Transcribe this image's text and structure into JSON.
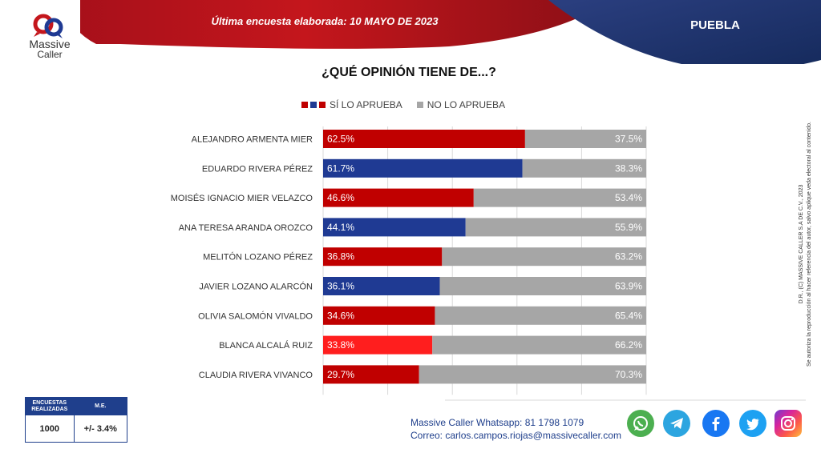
{
  "header": {
    "brand_name": "Massive",
    "brand_sub": "Caller",
    "survey_date": "Última encuesta elaborada: 10  MAYO  DE 2023",
    "region": "PUEBLA"
  },
  "chart_data": {
    "type": "bar",
    "title": "¿QUÉ OPINIÓN TIENE DE...?",
    "legend": [
      "SÍ LO APRUEBA",
      "NO LO APRUEBA"
    ],
    "categories": [
      "ALEJANDRO ARMENTA MIER",
      "EDUARDO RIVERA PÉREZ",
      "MOISÉS IGNACIO MIER VELAZCO",
      "ANA TERESA ARANDA OROZCO",
      "MELITÓN LOZANO PÉREZ",
      "JAVIER LOZANO ALARCÓN",
      "OLIVIA SALOMÓN VIVALDO",
      "BLANCA ALCALÁ RUIZ",
      "CLAUDIA RIVERA VIVANCO"
    ],
    "series": [
      {
        "name": "SÍ LO APRUEBA",
        "values": [
          62.5,
          61.7,
          46.6,
          44.1,
          36.8,
          36.1,
          34.6,
          33.8,
          29.7
        ]
      },
      {
        "name": "NO LO APRUEBA",
        "values": [
          37.5,
          38.3,
          53.4,
          55.9,
          63.2,
          63.9,
          65.4,
          66.2,
          70.3
        ]
      }
    ],
    "value_labels": {
      "approve": [
        "62.5%",
        "61.7%",
        "46.6%",
        "44.1%",
        "36.8%",
        "36.1%",
        "34.6%",
        "33.8%",
        "29.7%"
      ],
      "disapprove": [
        "37.5%",
        "38.3%",
        "53.4%",
        "55.9%",
        "63.2%",
        "63.9%",
        "65.4%",
        "66.2%",
        "70.3%"
      ]
    },
    "approve_colors": [
      "#c00000",
      "#1f3a93",
      "#c00000",
      "#1f3a93",
      "#c00000",
      "#1f3a93",
      "#c00000",
      "#ff1e1e",
      "#c00000"
    ],
    "disapprove_color": "#a6a6a6",
    "stacked": true,
    "orientation": "horizontal",
    "xlim": [
      0,
      100
    ]
  },
  "legend_colors": [
    "#c00000",
    "#1f3a93",
    "#c00000",
    "#a6a6a6"
  ],
  "side_note": {
    "line1": "D.R., (C) MASSIVE CALLER S.A DE C.V., 2023",
    "line2": "Se autoriza la reproducción al hacer referencia del autor, salvo aplique veda electoral al contenido."
  },
  "stats": {
    "col1_header": "ENCUESTAS REALIZADAS",
    "col2_header": "M.E.",
    "col1_value": "1000",
    "col2_value": "+/- 3.4%"
  },
  "contact": {
    "whatsapp_line": "Massive Caller Whatsapp: 81 1798 1079",
    "email_label": "Correo:",
    "email": "carlos.campos.riojas@massivecaller.com"
  },
  "social_icons": [
    "whatsapp-icon",
    "telegram-icon",
    "facebook-icon",
    "twitter-icon",
    "instagram-icon"
  ]
}
